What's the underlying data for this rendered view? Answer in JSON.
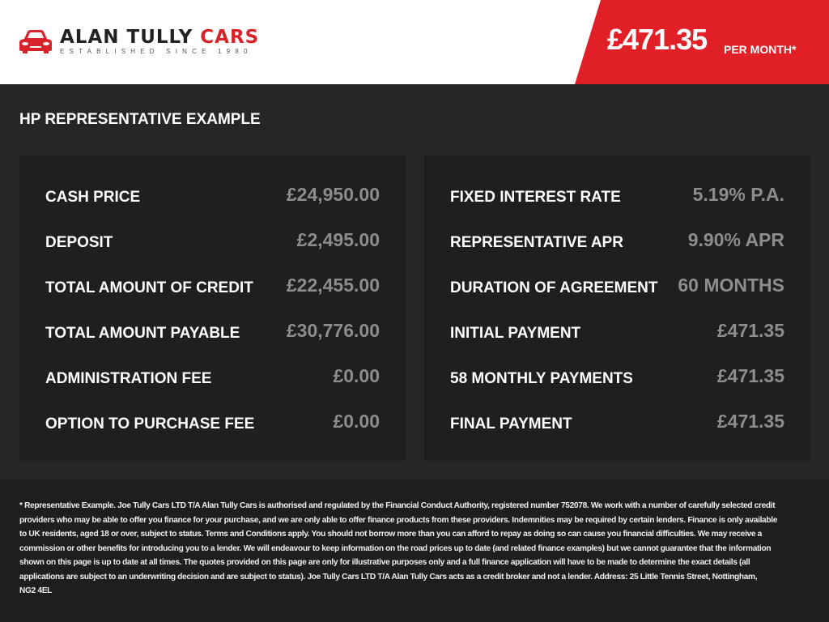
{
  "header": {
    "brand": {
      "name_dark": "ALAN TULLY",
      "name_red": "CARS",
      "tagline": "ESTABLISHED SINCE 1980"
    },
    "monthly_price": "£471.35",
    "per_month_label": "PER MONTH*",
    "accent_color": "#e01f26"
  },
  "section_title": "HP REPRESENTATIVE EXAMPLE",
  "left_panel": [
    {
      "label": "CASH PRICE",
      "value": "£24,950.00"
    },
    {
      "label": "DEPOSIT",
      "value": "£2,495.00"
    },
    {
      "label": "TOTAL AMOUNT OF CREDIT",
      "value": "£22,455.00"
    },
    {
      "label": "TOTAL AMOUNT PAYABLE",
      "value": "£30,776.00"
    },
    {
      "label": "ADMINISTRATION FEE",
      "value": "£0.00"
    },
    {
      "label": "OPTION TO PURCHASE FEE",
      "value": "£0.00"
    }
  ],
  "right_panel": [
    {
      "label": "FIXED INTEREST RATE",
      "value": "5.19% P.A."
    },
    {
      "label": "REPRESENTATIVE APR",
      "value": "9.90% APR"
    },
    {
      "label": "DURATION OF AGREEMENT",
      "value": "60 MONTHS"
    },
    {
      "label": "INITIAL PAYMENT",
      "value": "£471.35"
    },
    {
      "label": "58 MONTHLY PAYMENTS",
      "value": "£471.35"
    },
    {
      "label": "FINAL PAYMENT",
      "value": "£471.35"
    }
  ],
  "disclaimer_lines": [
    "* Representative Example. Joe Tully Cars LTD T/A  Alan Tully Cars is authorised and regulated by the Financial Conduct Authority, registered number 752078. We work with a number of carefully selected credit",
    "providers who may be able to offer you finance for your purchase, and we are only able to offer finance products from these providers. Indemnities may be required by certain lenders. Finance is only available",
    "to UK residents, aged 18 or over, subject to status. Terms and Conditions apply. You should not borrow more than you can afford to repay as doing so can cause you financial difficulties. We may receive a",
    "commission or other benefits for introducing you to a lender. We will endeavour to keep information on the road prices up to date (and related finance examples) but we cannot guarantee that the information",
    "shown on this page is up to date at all times. The quotes provided on this page are only for illustrative purposes only and a full finance application will have to be made to determine the exact details (all",
    "applications are subject to an underwriting decision and are subject to status). Joe Tully Cars LTD T/A  Alan Tully Cars acts as a credit broker and not a lender. Address: 25 Little Tennis Street, Nottingham,",
    "NG2 4EL"
  ]
}
